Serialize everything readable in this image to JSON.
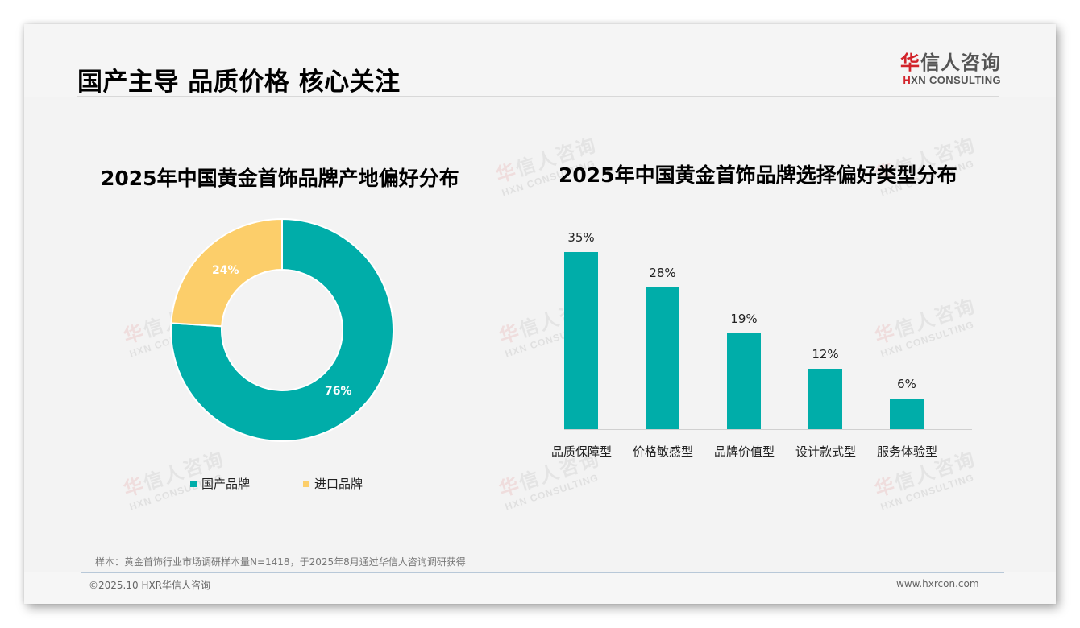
{
  "header": {
    "title": "国产主导 品质价格 核心关注",
    "logo": {
      "cn_first": "华",
      "cn_rest": "信人咨询",
      "en_first": "H",
      "en_rest": "XN CONSULTING"
    }
  },
  "watermark": {
    "cn_first": "华",
    "cn_rest": "信人咨询",
    "en": "HXN CONSULTING"
  },
  "donut_chart": {
    "title": "2025年中国黄金首饰品牌产地偏好分布",
    "slices": [
      {
        "label": "国产品牌",
        "value": 76,
        "display": "76%",
        "color": "#00ada9"
      },
      {
        "label": "进口品牌",
        "value": 24,
        "display": "24%",
        "color": "#fcce6a"
      }
    ]
  },
  "bar_chart": {
    "title": "2025年中国黄金首饰品牌选择偏好类型分布",
    "bar_color": "#00ada9",
    "bars": [
      {
        "label": "品质保障型",
        "value": 35,
        "display": "35%"
      },
      {
        "label": "价格敏感型",
        "value": 28,
        "display": "28%"
      },
      {
        "label": "品牌价值型",
        "value": 19,
        "display": "19%"
      },
      {
        "label": "设计款式型",
        "value": 12,
        "display": "12%"
      },
      {
        "label": "服务体验型",
        "value": 6,
        "display": "6%"
      }
    ]
  },
  "footer": {
    "footnote": "样本：黄金首饰行业市场调研样本量N=1418，于2025年8月通过华信人咨询调研获得",
    "copyright": "©2025.10 HXR华信人咨询",
    "website": "www.hxrcon.com"
  },
  "chart_data": [
    {
      "type": "pie",
      "title": "2025年中国黄金首饰品牌产地偏好分布",
      "categories": [
        "国产品牌",
        "进口品牌"
      ],
      "values": [
        76,
        24
      ],
      "unit": "%",
      "donut": true,
      "legend_position": "bottom",
      "colors": [
        "#00ada9",
        "#fcce6a"
      ]
    },
    {
      "type": "bar",
      "title": "2025年中国黄金首饰品牌选择偏好类型分布",
      "categories": [
        "品质保障型",
        "价格敏感型",
        "品牌价值型",
        "设计款式型",
        "服务体验型"
      ],
      "values": [
        35,
        28,
        19,
        12,
        6
      ],
      "unit": "%",
      "xlabel": "",
      "ylabel": "",
      "ylim": [
        0,
        40
      ],
      "grid": false,
      "data_labels": true
    }
  ]
}
